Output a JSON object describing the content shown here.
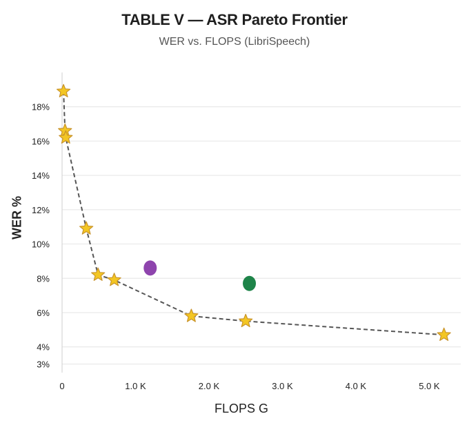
{
  "chart_data": {
    "type": "scatter",
    "title": "TABLE V — ASR Pareto Frontier",
    "subtitle": "WER vs. FLOPS (LibriSpeech)",
    "xlabel": "FLOPS G",
    "ylabel": "WER %",
    "xlim": [
      0,
      5200
    ],
    "ylim": [
      2.5,
      20
    ],
    "x_ticks": [
      {
        "value": 0,
        "label": "0"
      },
      {
        "value": 1000,
        "label": "1.0 K"
      },
      {
        "value": 2000,
        "label": "2.0 K"
      },
      {
        "value": 3000,
        "label": "3.0 K"
      },
      {
        "value": 4000,
        "label": "4.0 K"
      },
      {
        "value": 5000,
        "label": "5.0 K"
      }
    ],
    "y_ticks": [
      {
        "value": 3,
        "label": "3%"
      },
      {
        "value": 4,
        "label": "4%"
      },
      {
        "value": 6,
        "label": "6%"
      },
      {
        "value": 8,
        "label": "8%"
      },
      {
        "value": 10,
        "label": "10%"
      },
      {
        "value": 12,
        "label": "12%"
      },
      {
        "value": 14,
        "label": "14%"
      },
      {
        "value": 16,
        "label": "16%"
      },
      {
        "value": 18,
        "label": "18%"
      }
    ],
    "grid": "horizontal",
    "series": [
      {
        "marker": "star",
        "line": "dashed",
        "color": "#f3c623",
        "points": [
          {
            "x": 20,
            "y": 18.9
          },
          {
            "x": 40,
            "y": 16.6
          },
          {
            "x": 50,
            "y": 16.2
          },
          {
            "x": 330,
            "y": 10.9
          },
          {
            "x": 490,
            "y": 8.2
          },
          {
            "x": 710,
            "y": 7.9
          },
          {
            "x": 1760,
            "y": 5.8
          },
          {
            "x": 2500,
            "y": 5.5
          },
          {
            "x": 5200,
            "y": 4.7
          }
        ]
      },
      {
        "marker": "circle",
        "color": "#8e44ad",
        "points": [
          {
            "x": 1200,
            "y": 8.6
          }
        ]
      },
      {
        "marker": "circle",
        "color": "#1e8449",
        "points": [
          {
            "x": 2550,
            "y": 7.7
          }
        ]
      }
    ]
  }
}
